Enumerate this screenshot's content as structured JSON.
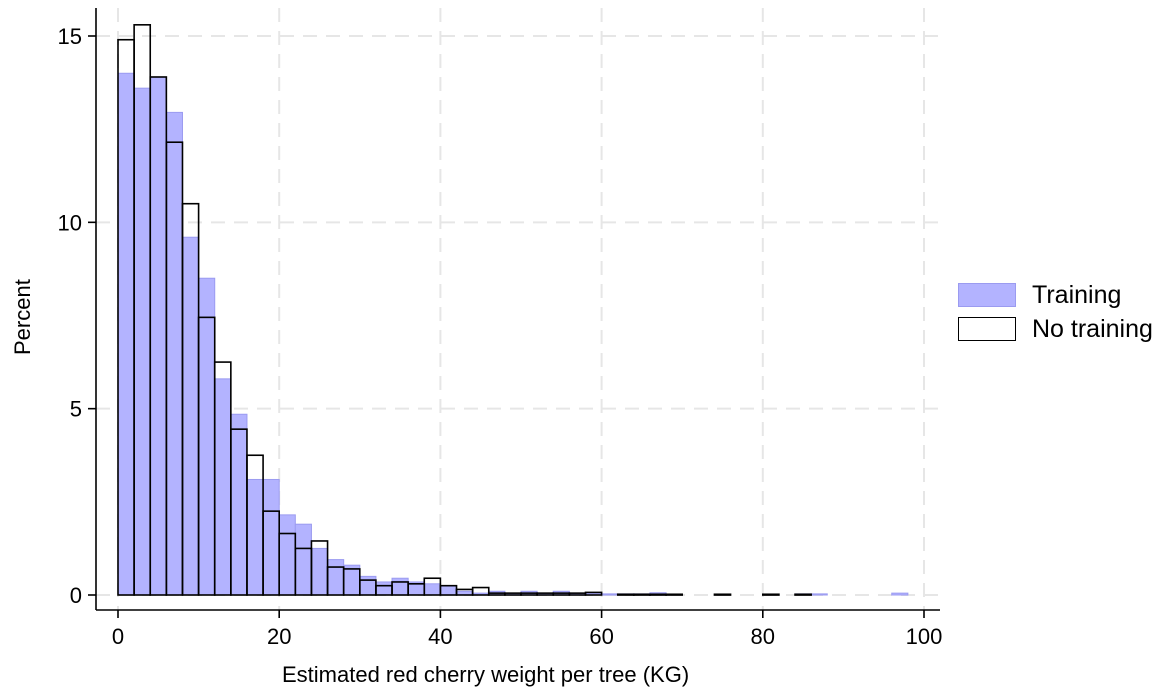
{
  "chart_data": {
    "type": "bar",
    "xlabel": "Estimated red cherry weight per tree (KG)",
    "ylabel": "Percent",
    "xlim": [
      0,
      100
    ],
    "ylim": [
      0,
      15
    ],
    "x_ticks": [
      0,
      20,
      40,
      60,
      80,
      100
    ],
    "y_ticks": [
      0,
      5,
      10,
      15
    ],
    "grid": true,
    "legend_position": "right",
    "bin_width": 2,
    "series": [
      {
        "name": "Training",
        "style": "filled",
        "bins": [
          {
            "x0": 0,
            "value": 14.0
          },
          {
            "x0": 2,
            "value": 13.6
          },
          {
            "x0": 4,
            "value": 13.9
          },
          {
            "x0": 6,
            "value": 12.95
          },
          {
            "x0": 8,
            "value": 9.6
          },
          {
            "x0": 10,
            "value": 8.5
          },
          {
            "x0": 12,
            "value": 5.8
          },
          {
            "x0": 14,
            "value": 4.85
          },
          {
            "x0": 16,
            "value": 3.1
          },
          {
            "x0": 18,
            "value": 3.1
          },
          {
            "x0": 20,
            "value": 2.15
          },
          {
            "x0": 22,
            "value": 1.9
          },
          {
            "x0": 24,
            "value": 1.25
          },
          {
            "x0": 26,
            "value": 0.95
          },
          {
            "x0": 28,
            "value": 0.8
          },
          {
            "x0": 30,
            "value": 0.5
          },
          {
            "x0": 32,
            "value": 0.35
          },
          {
            "x0": 34,
            "value": 0.45
          },
          {
            "x0": 36,
            "value": 0.35
          },
          {
            "x0": 38,
            "value": 0.3
          },
          {
            "x0": 40,
            "value": 0.25
          },
          {
            "x0": 42,
            "value": 0.1
          },
          {
            "x0": 44,
            "value": 0.05
          },
          {
            "x0": 46,
            "value": 0.1
          },
          {
            "x0": 48,
            "value": 0.05
          },
          {
            "x0": 50,
            "value": 0.1
          },
          {
            "x0": 52,
            "value": 0.05
          },
          {
            "x0": 54,
            "value": 0.1
          },
          {
            "x0": 56,
            "value": 0.05
          },
          {
            "x0": 58,
            "value": 0.05
          },
          {
            "x0": 60,
            "value": 0.03
          },
          {
            "x0": 62,
            "value": 0.03
          },
          {
            "x0": 64,
            "value": 0.03
          },
          {
            "x0": 66,
            "value": 0.06
          },
          {
            "x0": 84,
            "value": 0.03
          },
          {
            "x0": 86,
            "value": 0.03
          },
          {
            "x0": 96,
            "value": 0.05
          }
        ]
      },
      {
        "name": "No training",
        "style": "outline",
        "bins": [
          {
            "x0": 0,
            "value": 14.9
          },
          {
            "x0": 2,
            "value": 15.3
          },
          {
            "x0": 4,
            "value": 13.9
          },
          {
            "x0": 6,
            "value": 12.15
          },
          {
            "x0": 8,
            "value": 10.5
          },
          {
            "x0": 10,
            "value": 7.45
          },
          {
            "x0": 12,
            "value": 6.25
          },
          {
            "x0": 14,
            "value": 4.45
          },
          {
            "x0": 16,
            "value": 3.75
          },
          {
            "x0": 18,
            "value": 2.25
          },
          {
            "x0": 20,
            "value": 1.65
          },
          {
            "x0": 22,
            "value": 1.25
          },
          {
            "x0": 24,
            "value": 1.45
          },
          {
            "x0": 26,
            "value": 0.75
          },
          {
            "x0": 28,
            "value": 0.7
          },
          {
            "x0": 30,
            "value": 0.4
          },
          {
            "x0": 32,
            "value": 0.25
          },
          {
            "x0": 34,
            "value": 0.35
          },
          {
            "x0": 36,
            "value": 0.3
          },
          {
            "x0": 38,
            "value": 0.45
          },
          {
            "x0": 40,
            "value": 0.25
          },
          {
            "x0": 42,
            "value": 0.15
          },
          {
            "x0": 44,
            "value": 0.2
          },
          {
            "x0": 46,
            "value": 0.05
          },
          {
            "x0": 48,
            "value": 0.05
          },
          {
            "x0": 50,
            "value": 0.05
          },
          {
            "x0": 52,
            "value": 0.05
          },
          {
            "x0": 54,
            "value": 0.05
          },
          {
            "x0": 56,
            "value": 0.05
          },
          {
            "x0": 58,
            "value": 0.07
          },
          {
            "x0": 62,
            "value": 0.02
          },
          {
            "x0": 64,
            "value": 0.02
          },
          {
            "x0": 66,
            "value": 0.02
          },
          {
            "x0": 68,
            "value": 0.02
          },
          {
            "x0": 74,
            "value": 0.02
          },
          {
            "x0": 80,
            "value": 0.02
          },
          {
            "x0": 84,
            "value": 0.02
          }
        ]
      }
    ]
  },
  "colors": {
    "training_fill": "#b3b3ff",
    "training_stroke": "#9b9bf0",
    "outline_stroke": "#000000",
    "grid": "#e6e6e6",
    "axis": "#000000"
  }
}
